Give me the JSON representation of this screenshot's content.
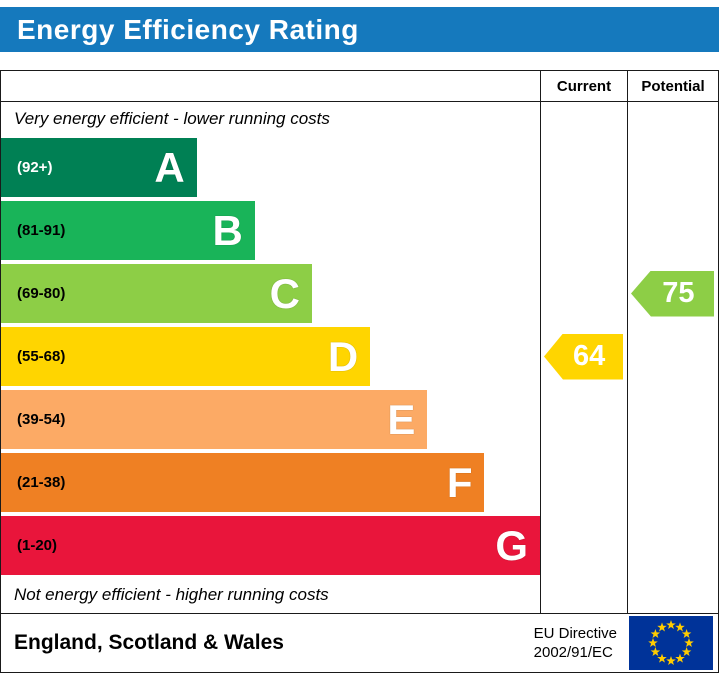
{
  "header": {
    "title": "Energy Efficiency Rating",
    "bg_color": "#1579bd"
  },
  "columns": {
    "current_label": "Current",
    "potential_label": "Potential"
  },
  "notes": {
    "top": "Very energy efficient - lower running costs",
    "bottom": "Not energy efficient - higher running costs"
  },
  "bands": [
    {
      "letter": "A",
      "range": "(92+)",
      "color": "#008054",
      "range_color": "#ffffff",
      "width_pct": 36.3
    },
    {
      "letter": "B",
      "range": "(81-91)",
      "color": "#19b459",
      "range_color": "#000000",
      "width_pct": 47.1
    },
    {
      "letter": "C",
      "range": "(69-80)",
      "color": "#8dce46",
      "range_color": "#000000",
      "width_pct": 57.7
    },
    {
      "letter": "D",
      "range": "(55-68)",
      "color": "#ffd500",
      "range_color": "#000000",
      "width_pct": 68.5
    },
    {
      "letter": "E",
      "range": "(39-54)",
      "color": "#fcaa65",
      "range_color": "#000000",
      "width_pct": 79.1
    },
    {
      "letter": "F",
      "range": "(21-38)",
      "color": "#ef8023",
      "range_color": "#000000",
      "width_pct": 89.7
    },
    {
      "letter": "G",
      "range": "(1-20)",
      "color": "#e9153b",
      "range_color": "#000000",
      "width_pct": 100
    }
  ],
  "current": {
    "value": "64",
    "color": "#ffd500",
    "band_index": 3
  },
  "potential": {
    "value": "75",
    "color": "#8dce46",
    "band_index": 2
  },
  "footer": {
    "region": "England, Scotland & Wales",
    "directive_line1": "EU Directive",
    "directive_line2": "2002/91/EC"
  },
  "chart_data": {
    "type": "bar",
    "title": "Energy Efficiency Rating",
    "categories": [
      "A",
      "B",
      "C",
      "D",
      "E",
      "F",
      "G"
    ],
    "band_ranges": [
      "92+",
      "81-91",
      "69-80",
      "55-68",
      "39-54",
      "21-38",
      "1-20"
    ],
    "band_colors": [
      "#008054",
      "#19b459",
      "#8dce46",
      "#ffd500",
      "#fcaa65",
      "#ef8023",
      "#e9153b"
    ],
    "relative_bar_lengths_pct": [
      36.3,
      47.1,
      57.7,
      68.5,
      79.1,
      89.7,
      100
    ],
    "series": [
      {
        "name": "Current",
        "value": 64,
        "band": "D",
        "color": "#ffd500"
      },
      {
        "name": "Potential",
        "value": 75,
        "band": "C",
        "color": "#8dce46"
      }
    ],
    "scale": [
      1,
      100
    ],
    "annotations": [
      "Very energy efficient - lower running costs",
      "Not energy efficient - higher running costs",
      "England, Scotland & Wales",
      "EU Directive 2002/91/EC"
    ],
    "legend_position": "none",
    "grid": false
  }
}
